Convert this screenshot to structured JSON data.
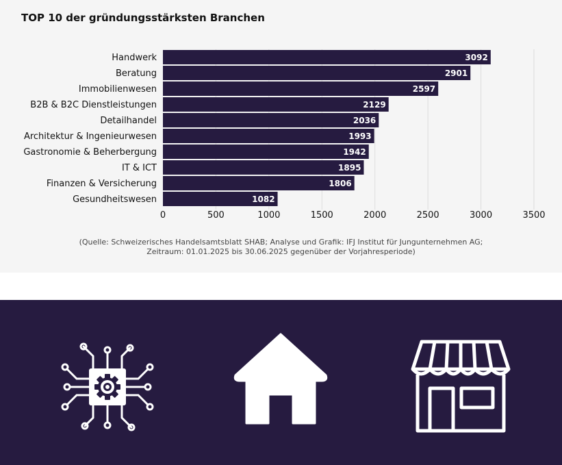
{
  "chart_data": {
    "type": "bar",
    "orientation": "horizontal",
    "title": "TOP 10 der gründungsstärksten Branchen",
    "categories": [
      "Handwerk",
      "Beratung",
      "Immobilienwesen",
      "B2B & B2C Dienstleistungen",
      "Detailhandel",
      "Architektur & Ingenieurwesen",
      "Gastronomie & Beherbergung",
      "IT & ICT",
      "Finanzen & Versicherung",
      "Gesundheitswesen"
    ],
    "values": [
      3092,
      2901,
      2597,
      2129,
      2036,
      1993,
      1942,
      1895,
      1806,
      1082
    ],
    "xlim": [
      0,
      3500
    ],
    "xticks": [
      0,
      500,
      1000,
      1500,
      2000,
      2500,
      3000,
      3500
    ],
    "grid": true,
    "bar_color": "#261b40"
  },
  "source": {
    "line1": "(Quelle: Schweizerisches Handelsamtsblatt SHAB; Analyse und Grafik: IFJ Institut für Jungunternehmen AG;",
    "line2": "Zeitraum: 01.01.2025 bis 30.06.2025 gegenüber der Vorjahresperiode)"
  },
  "icon_band": {
    "background": "#261b40",
    "icons": [
      "chip-gear-icon",
      "house-icon",
      "storefront-icon"
    ]
  }
}
